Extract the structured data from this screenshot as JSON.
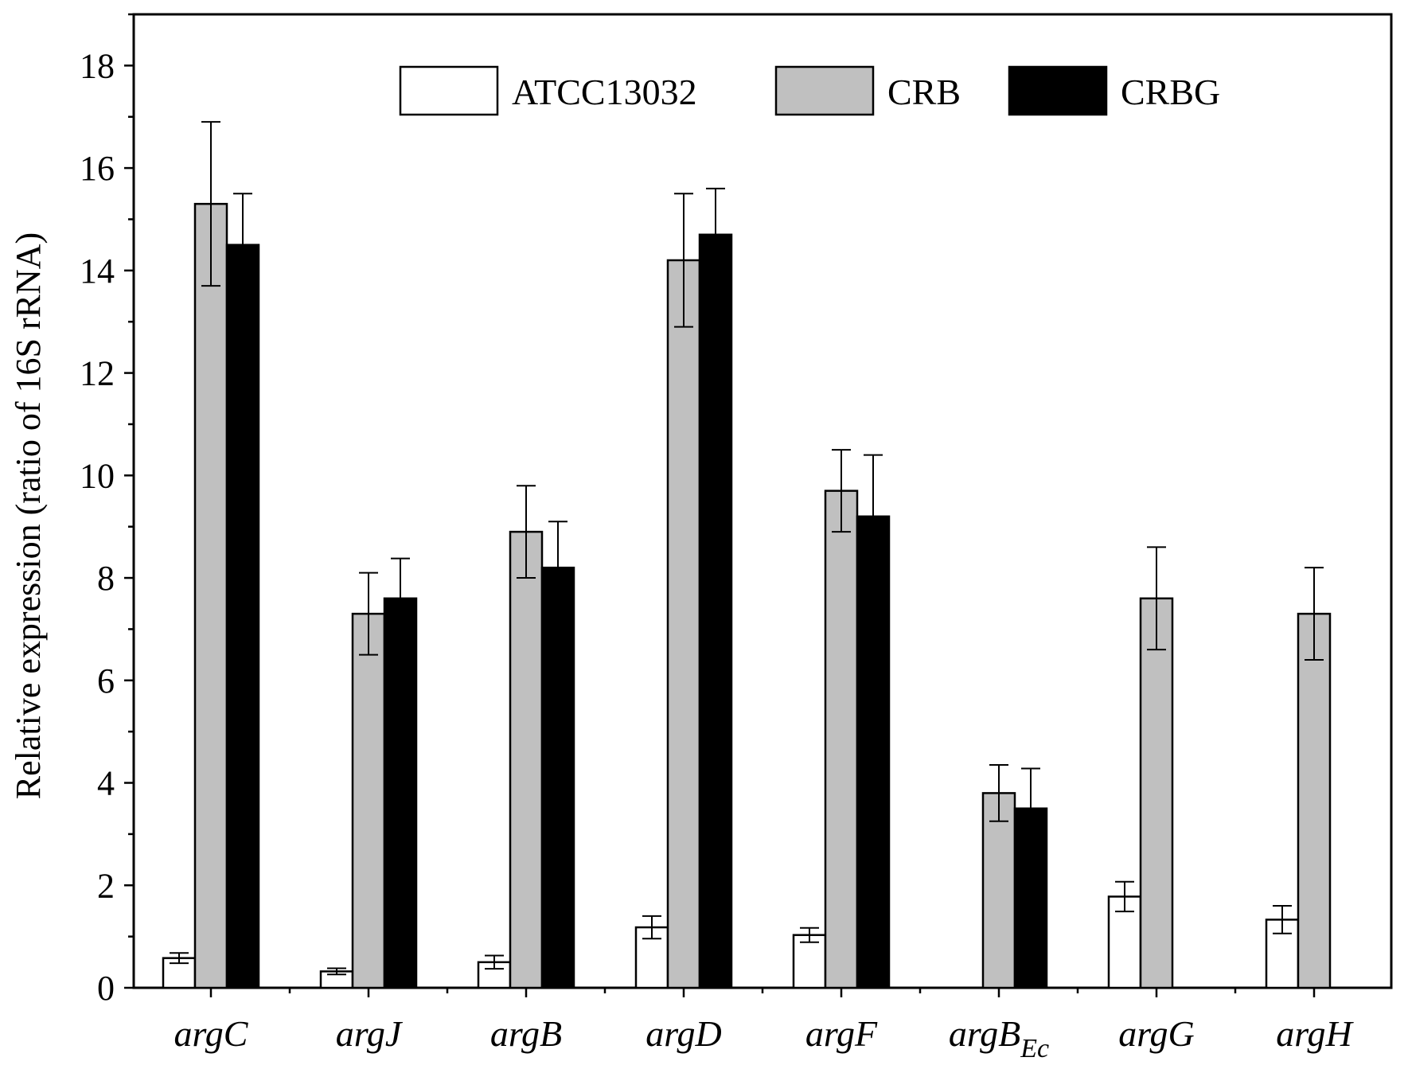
{
  "chart_data": {
    "type": "bar",
    "title": "",
    "xlabel": "",
    "ylabel": "Relative expression (ratio of 16S rRNA)",
    "ylim": [
      0,
      19
    ],
    "yticks": [
      0,
      2,
      4,
      6,
      8,
      10,
      12,
      14,
      16,
      18
    ],
    "ytick_labels": [
      "0",
      "2",
      "4",
      "6",
      "8",
      "10",
      "12",
      "14",
      "16",
      "18"
    ],
    "categories": [
      {
        "main": "argC",
        "sub": ""
      },
      {
        "main": "argJ",
        "sub": ""
      },
      {
        "main": "argB",
        "sub": ""
      },
      {
        "main": "argD",
        "sub": ""
      },
      {
        "main": "argF",
        "sub": ""
      },
      {
        "main": "argB",
        "sub": "Ec"
      },
      {
        "main": "argG",
        "sub": ""
      },
      {
        "main": "argH",
        "sub": ""
      }
    ],
    "series": [
      {
        "name": "ATCC13032",
        "color": "#ffffff",
        "values": [
          0.58,
          0.32,
          0.5,
          1.18,
          1.03,
          null,
          1.78,
          1.33
        ],
        "errors": [
          0.1,
          0.06,
          0.13,
          0.22,
          0.14,
          null,
          0.29,
          0.27
        ]
      },
      {
        "name": "CRB",
        "color": "#c0c0c0",
        "values": [
          15.3,
          7.3,
          8.9,
          14.2,
          9.7,
          3.8,
          7.6,
          7.3
        ],
        "errors": [
          1.6,
          0.8,
          0.9,
          1.3,
          0.8,
          0.55,
          1.0,
          0.9
        ]
      },
      {
        "name": "CRBG",
        "color": "#000000",
        "values": [
          14.5,
          7.6,
          8.2,
          14.7,
          9.2,
          3.5,
          null,
          null
        ],
        "errors": [
          1.0,
          0.78,
          0.9,
          0.9,
          1.2,
          0.78,
          null,
          null
        ]
      }
    ],
    "legend_position": "top-center",
    "grid": false
  }
}
